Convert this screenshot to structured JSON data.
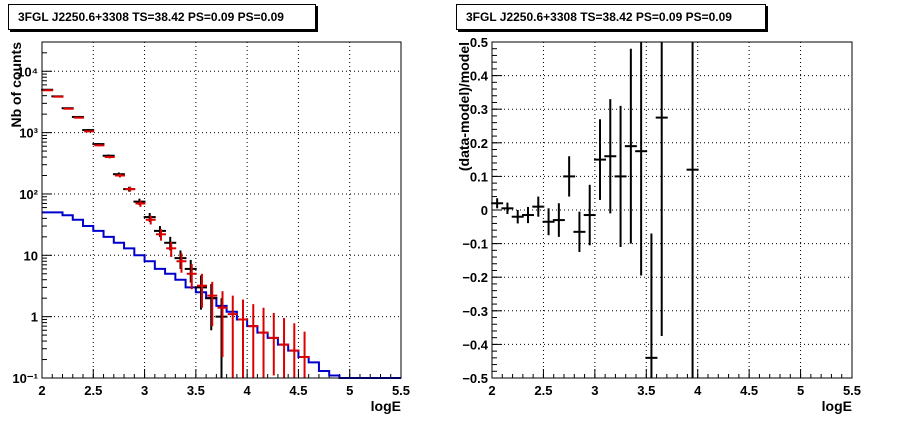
{
  "chart_data": [
    {
      "type": "histogram",
      "title": "3FGL J2250.6+3308 TS=38.42 PS=0.09 PS=0.09",
      "xlabel": "logE",
      "ylabel": "Nb of counts",
      "xlim": [
        2,
        5.5
      ],
      "ylim": [
        0.1,
        30000
      ],
      "yscale": "log",
      "grid": true,
      "x_ticks": [
        "2",
        "2.5",
        "3",
        "3.5",
        "4",
        "4.5",
        "5",
        "5.5"
      ],
      "y_ticks": [
        {
          "value": 0.1,
          "label": "10⁻¹"
        },
        {
          "value": 1,
          "label": "1"
        },
        {
          "value": 10,
          "label": "10"
        },
        {
          "value": 100,
          "label": "10²"
        },
        {
          "value": 1000,
          "label": "10³"
        },
        {
          "value": 10000,
          "label": "10⁴"
        }
      ],
      "bin_edges": [
        2,
        2.1,
        2.2,
        2.3,
        2.4,
        2.5,
        2.6,
        2.7,
        2.8,
        2.9,
        3.0,
        3.1,
        3.2,
        3.3,
        3.4,
        3.5,
        3.6,
        3.7,
        3.8,
        3.9,
        4.0,
        4.1,
        4.2,
        4.3,
        4.4,
        4.5,
        4.6,
        4.7,
        4.8,
        4.9,
        5.0,
        5.1,
        5.2,
        5.3,
        5.4,
        5.5
      ],
      "series": [
        {
          "style": "data-points",
          "color": "#000000",
          "x": [
            2.05,
            2.15,
            2.25,
            2.35,
            2.45,
            2.55,
            2.65,
            2.75,
            2.85,
            2.95,
            3.05,
            3.15,
            3.25,
            3.35,
            3.45,
            3.55,
            3.65,
            3.75
          ],
          "y": [
            5000,
            3900,
            2500,
            1800,
            1100,
            650,
            420,
            210,
            120,
            75,
            42,
            25,
            16,
            9,
            6,
            3,
            2,
            1
          ],
          "err_low": [
            70,
            60,
            50,
            42,
            33,
            25,
            20,
            14,
            11,
            9,
            7,
            5,
            4,
            3,
            2.4,
            1.7,
            1.4,
            1
          ],
          "err_high": [
            70,
            60,
            50,
            42,
            33,
            25,
            20,
            14,
            11,
            9,
            7,
            5,
            4,
            3,
            2.4,
            1.7,
            1.4,
            1
          ]
        },
        {
          "style": "points-with-errors",
          "color": "#dd0000",
          "x": [
            2.05,
            2.15,
            2.25,
            2.35,
            2.45,
            2.55,
            2.65,
            2.75,
            2.85,
            2.95,
            3.05,
            3.15,
            3.25,
            3.35,
            3.45,
            3.55,
            3.65,
            3.75,
            3.85,
            3.95,
            4.05,
            4.15,
            4.25,
            4.35,
            4.45,
            4.55
          ],
          "y": [
            4900,
            3850,
            2450,
            1750,
            1050,
            620,
            400,
            200,
            120,
            70,
            38,
            22,
            13,
            8,
            5,
            3.2,
            2.2,
            1.4,
            1.1,
            0.9,
            0.7,
            0.55,
            0.45,
            0.35,
            0.28,
            0.22
          ],
          "err_low": [
            70,
            60,
            50,
            42,
            33,
            25,
            20,
            14,
            11,
            8.5,
            6.2,
            4.7,
            3.6,
            2.8,
            2.2,
            1.8,
            1.5,
            1.18,
            1.0,
            0.85,
            0.63,
            0.45,
            0.34,
            0.25,
            0.18,
            0.12
          ],
          "err_high": [
            70,
            60,
            50,
            42,
            33,
            25,
            20,
            14,
            11,
            8.5,
            6.2,
            4.7,
            3.6,
            2.8,
            2.2,
            1.8,
            1.5,
            1.2,
            1.1,
            1.0,
            0.9,
            0.85,
            0.7,
            0.6,
            0.5,
            0.35
          ]
        },
        {
          "style": "step-histogram",
          "color": "#0000cc",
          "values": [
            50,
            50,
            45,
            38,
            30,
            25,
            20,
            16,
            13,
            10,
            8,
            6,
            5,
            4,
            3,
            2.5,
            2,
            1.5,
            1.2,
            0.9,
            0.7,
            0.55,
            0.45,
            0.35,
            0.28,
            0.22,
            0.18,
            0.13,
            0.11,
            0.1,
            0.1,
            0.1,
            0.1,
            0.1,
            0.1
          ]
        }
      ]
    },
    {
      "type": "scatter",
      "title": "3FGL J2250.6+3308 TS=38.42 PS=0.09 PS=0.09",
      "xlabel": "logE",
      "ylabel": "(data-model)/model",
      "xlim": [
        2,
        5.5
      ],
      "ylim": [
        -0.5,
        0.5
      ],
      "grid": true,
      "x_ticks": [
        "2",
        "2.5",
        "3",
        "3.5",
        "4",
        "4.5",
        "5",
        "5.5"
      ],
      "y_ticks": [
        "−0.5",
        "−0.4",
        "−0.3",
        "−0.2",
        "−0.1",
        "0",
        "0.1",
        "0.2",
        "0.3",
        "0.4",
        "0.5"
      ],
      "series": [
        {
          "style": "points-with-errors",
          "color": "#000000",
          "x": [
            2.05,
            2.15,
            2.25,
            2.35,
            2.45,
            2.55,
            2.65,
            2.75,
            2.85,
            2.95,
            3.05,
            3.15,
            3.25,
            3.35,
            3.45,
            3.55,
            3.65,
            3.95
          ],
          "y": [
            0.02,
            0.005,
            -0.02,
            -0.015,
            0.01,
            -0.035,
            -0.03,
            0.1,
            -0.065,
            -0.015,
            0.15,
            0.16,
            0.1,
            0.19,
            0.175,
            -0.44,
            0.275,
            0.12
          ],
          "err": [
            0.015,
            0.017,
            0.02,
            0.024,
            0.03,
            0.04,
            0.05,
            0.06,
            0.06,
            0.09,
            0.12,
            0.17,
            0.21,
            0.29,
            0.37,
            0.37,
            0.65,
            1.0
          ]
        }
      ]
    }
  ]
}
